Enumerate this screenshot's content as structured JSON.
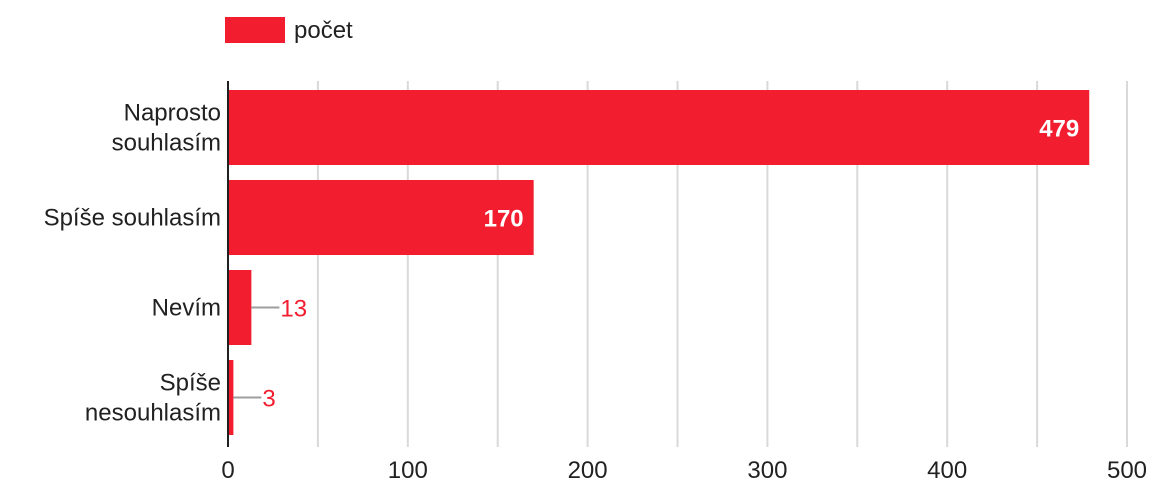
{
  "chart_data": {
    "type": "bar",
    "orientation": "horizontal",
    "categories": [
      [
        "Naprosto",
        "souhlasím"
      ],
      [
        "Spíše souhlasím"
      ],
      [
        "Nevím"
      ],
      [
        "Spíše",
        "nesouhlasím"
      ]
    ],
    "series": [
      {
        "name": "počet",
        "values": [
          479,
          170,
          13,
          3
        ]
      }
    ],
    "data_labels": [
      "479",
      "170",
      "13",
      "3"
    ],
    "xticks": [
      0,
      100,
      200,
      300,
      400,
      500
    ],
    "xlim": [
      0,
      500
    ],
    "title": "",
    "xlabel": "",
    "ylabel": "",
    "grid": "vertical",
    "legend": "top-left",
    "colors": {
      "bar": "#f21d2f",
      "grid": "#d9d9d9",
      "axis": "#212121",
      "leader": "#9e9e9e"
    }
  }
}
